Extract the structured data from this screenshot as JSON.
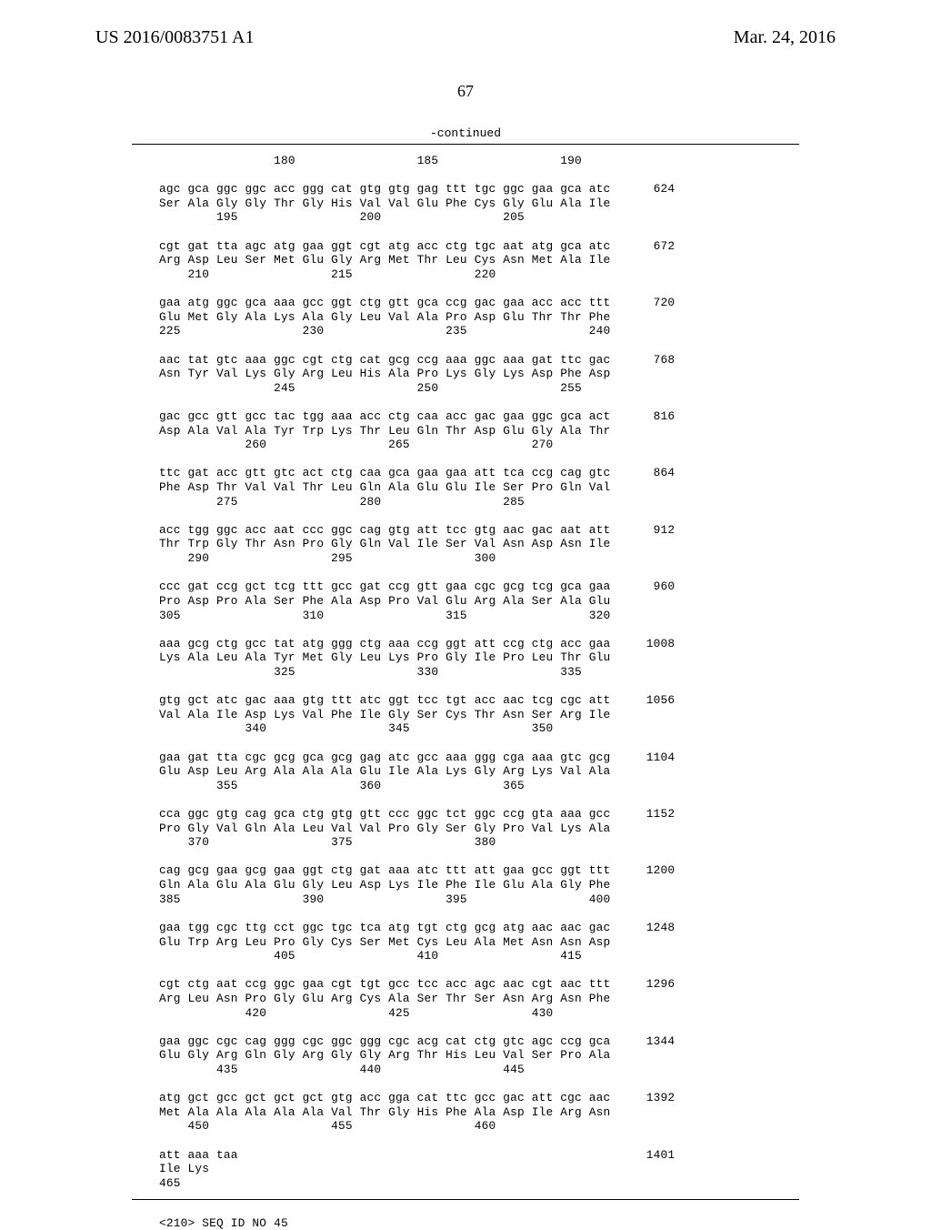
{
  "header": {
    "left": "US 2016/0083751 A1",
    "right": "Mar. 24, 2016"
  },
  "page_number": "67",
  "continued_label": "-continued",
  "sequence_block": "                180                 185                 190\n\nagc gca ggc ggc acc ggg cat gtg gtg gag ttt tgc ggc gaa gca atc      624\nSer Ala Gly Gly Thr Gly His Val Val Glu Phe Cys Gly Glu Ala Ile\n        195                 200                 205\n\ncgt gat tta agc atg gaa ggt cgt atg acc ctg tgc aat atg gca atc      672\nArg Asp Leu Ser Met Glu Gly Arg Met Thr Leu Cys Asn Met Ala Ile\n    210                 215                 220\n\ngaa atg ggc gca aaa gcc ggt ctg gtt gca ccg gac gaa acc acc ttt      720\nGlu Met Gly Ala Lys Ala Gly Leu Val Ala Pro Asp Glu Thr Thr Phe\n225                 230                 235                 240\n\naac tat gtc aaa ggc cgt ctg cat gcg ccg aaa ggc aaa gat ttc gac      768\nAsn Tyr Val Lys Gly Arg Leu His Ala Pro Lys Gly Lys Asp Phe Asp\n                245                 250                 255\n\ngac gcc gtt gcc tac tgg aaa acc ctg caa acc gac gaa ggc gca act      816\nAsp Ala Val Ala Tyr Trp Lys Thr Leu Gln Thr Asp Glu Gly Ala Thr\n            260                 265                 270\n\nttc gat acc gtt gtc act ctg caa gca gaa gaa att tca ccg cag gtc      864\nPhe Asp Thr Val Val Thr Leu Gln Ala Glu Glu Ile Ser Pro Gln Val\n        275                 280                 285\n\nacc tgg ggc acc aat ccc ggc cag gtg att tcc gtg aac gac aat att      912\nThr Trp Gly Thr Asn Pro Gly Gln Val Ile Ser Val Asn Asp Asn Ile\n    290                 295                 300\n\nccc gat ccg gct tcg ttt gcc gat ccg gtt gaa cgc gcg tcg gca gaa      960\nPro Asp Pro Ala Ser Phe Ala Asp Pro Val Glu Arg Ala Ser Ala Glu\n305                 310                 315                 320\n\naaa gcg ctg gcc tat atg ggg ctg aaa ccg ggt att ccg ctg acc gaa     1008\nLys Ala Leu Ala Tyr Met Gly Leu Lys Pro Gly Ile Pro Leu Thr Glu\n                325                 330                 335\n\ngtg gct atc gac aaa gtg ttt atc ggt tcc tgt acc aac tcg cgc att     1056\nVal Ala Ile Asp Lys Val Phe Ile Gly Ser Cys Thr Asn Ser Arg Ile\n            340                 345                 350\n\ngaa gat tta cgc gcg gca gcg gag atc gcc aaa ggg cga aaa gtc gcg     1104\nGlu Asp Leu Arg Ala Ala Ala Glu Ile Ala Lys Gly Arg Lys Val Ala\n        355                 360                 365\n\ncca ggc gtg cag gca ctg gtg gtt ccc ggc tct ggc ccg gta aaa gcc     1152\nPro Gly Val Gln Ala Leu Val Val Pro Gly Ser Gly Pro Val Lys Ala\n    370                 375                 380\n\ncag gcg gaa gcg gaa ggt ctg gat aaa atc ttt att gaa gcc ggt ttt     1200\nGln Ala Glu Ala Glu Gly Leu Asp Lys Ile Phe Ile Glu Ala Gly Phe\n385                 390                 395                 400\n\ngaa tgg cgc ttg cct ggc tgc tca atg tgt ctg gcg atg aac aac gac     1248\nGlu Trp Arg Leu Pro Gly Cys Ser Met Cys Leu Ala Met Asn Asn Asp\n                405                 410                 415\n\ncgt ctg aat ccg ggc gaa cgt tgt gcc tcc acc agc aac cgt aac ttt     1296\nArg Leu Asn Pro Gly Glu Arg Cys Ala Ser Thr Ser Asn Arg Asn Phe\n            420                 425                 430\n\ngaa ggc cgc cag ggg cgc ggc ggg cgc acg cat ctg gtc agc ccg gca     1344\nGlu Gly Arg Gln Gly Arg Gly Gly Arg Thr His Leu Val Ser Pro Ala\n        435                 440                 445\n\natg gct gcc gct gct gct gtg acc gga cat ttc gcc gac att cgc aac     1392\nMet Ala Ala Ala Ala Ala Val Thr Gly His Phe Ala Asp Ile Arg Asn\n    450                 455                 460\n\natt aaa taa                                                         1401\nIle Lys\n465",
  "seq_id_line": "<210> SEQ ID NO 45"
}
